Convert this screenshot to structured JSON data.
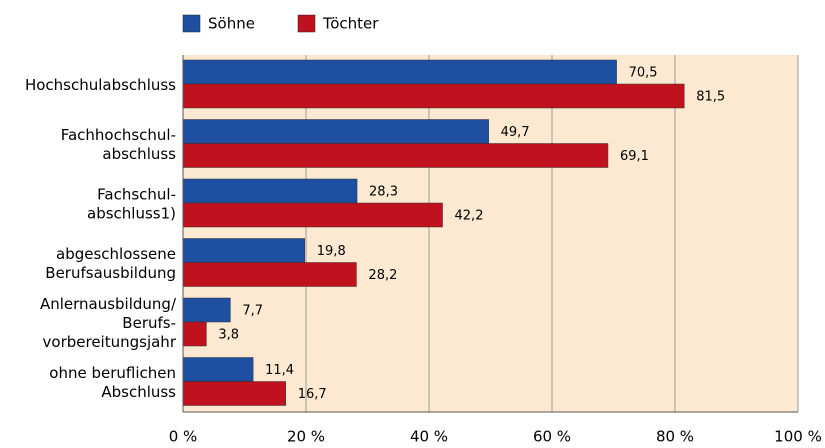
{
  "chart_data": {
    "type": "bar",
    "orientation": "horizontal",
    "categories": [
      [
        "Hochschulabschluss"
      ],
      [
        "Fachhochschul-",
        "abschluss"
      ],
      [
        "Fachschul-",
        "abschluss1)"
      ],
      [
        "abgeschlossene",
        "Berufsausbildung"
      ],
      [
        "Anlernausbildung/",
        "Berufs-",
        "vorbereitungsjahr"
      ],
      [
        "ohne beruflichen",
        "Abschluss"
      ]
    ],
    "series": [
      {
        "name": "Söhne",
        "color": "#1f4fa0",
        "values": [
          70.5,
          49.7,
          28.3,
          19.8,
          7.7,
          11.4
        ],
        "value_labels": [
          "70,5",
          "49,7",
          "28,3",
          "19,8",
          "7,7",
          "11,4"
        ]
      },
      {
        "name": "Töchter",
        "color": "#c0121e",
        "values": [
          81.5,
          69.1,
          42.2,
          28.2,
          3.8,
          16.7
        ],
        "value_labels": [
          "81,5",
          "69,1",
          "42,2",
          "28,2",
          "3,8",
          "16,7"
        ]
      }
    ],
    "xlim": [
      0,
      100
    ],
    "xticks": [
      {
        "value": 0,
        "label": "0 %"
      },
      {
        "value": 20,
        "label": "20 %"
      },
      {
        "value": 40,
        "label": "40 %"
      },
      {
        "value": 60,
        "label": "60 %"
      },
      {
        "value": 80,
        "label": "80 %"
      },
      {
        "value": 100,
        "label": "100 %"
      }
    ],
    "grid": true,
    "legend": "top"
  }
}
